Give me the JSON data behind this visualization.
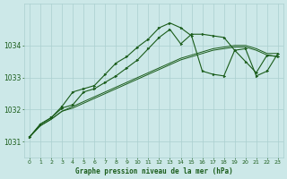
{
  "title": "Graphe pression niveau de la mer (hPa)",
  "background_color": "#cce8e8",
  "plot_bg_color": "#cce8e8",
  "grid_color": "#aacfcf",
  "line_color": "#1a5c1a",
  "xlim": [
    -0.5,
    23.5
  ],
  "ylim": [
    1030.5,
    1035.3
  ],
  "yticks": [
    1031,
    1032,
    1033,
    1034
  ],
  "xticks": [
    0,
    1,
    2,
    3,
    4,
    5,
    6,
    7,
    8,
    9,
    10,
    11,
    12,
    13,
    14,
    15,
    16,
    17,
    18,
    19,
    20,
    21,
    22,
    23
  ],
  "series": {
    "line1_marked": [
      1031.15,
      1031.55,
      1031.75,
      1032.1,
      1032.55,
      1032.65,
      1032.75,
      1033.1,
      1033.45,
      1033.65,
      1033.95,
      1034.2,
      1034.55,
      1034.7,
      1034.55,
      1034.3,
      1033.2,
      1033.1,
      1033.05,
      1033.85,
      1033.9,
      1033.05,
      1033.2,
      1033.75
    ],
    "line2_marked": [
      1031.15,
      1031.55,
      1031.75,
      1032.05,
      1032.15,
      1032.55,
      1032.65,
      1032.85,
      1033.05,
      1033.3,
      1033.55,
      1033.9,
      1034.25,
      1034.5,
      1034.05,
      1034.35,
      1034.35,
      1034.3,
      1034.25,
      1033.85,
      1033.5,
      1033.15,
      1033.7,
      1033.65
    ],
    "line3_plain": [
      1031.15,
      1031.5,
      1031.7,
      1031.95,
      1032.1,
      1032.25,
      1032.4,
      1032.55,
      1032.7,
      1032.85,
      1033.0,
      1033.15,
      1033.3,
      1033.45,
      1033.6,
      1033.7,
      1033.8,
      1033.9,
      1033.95,
      1034.0,
      1034.0,
      1033.9,
      1033.75,
      1033.75
    ],
    "line4_plain": [
      1031.15,
      1031.5,
      1031.7,
      1031.95,
      1032.05,
      1032.2,
      1032.35,
      1032.5,
      1032.65,
      1032.8,
      1032.95,
      1033.1,
      1033.25,
      1033.4,
      1033.55,
      1033.65,
      1033.75,
      1033.85,
      1033.9,
      1033.95,
      1033.95,
      1033.85,
      1033.7,
      1033.65
    ]
  }
}
